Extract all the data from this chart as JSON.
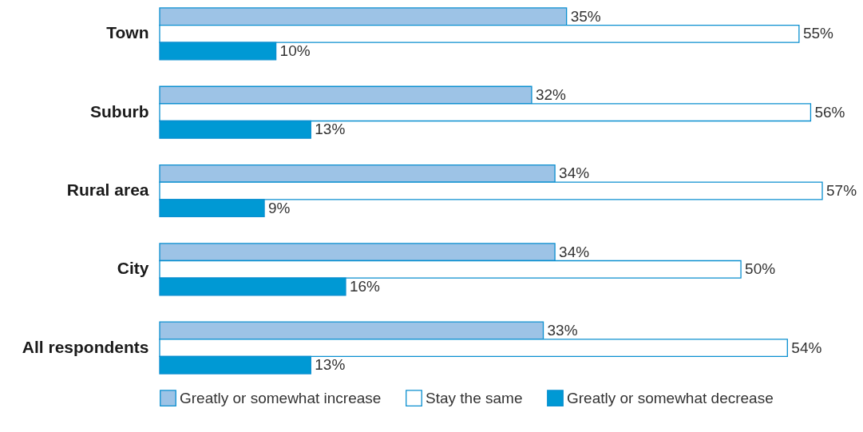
{
  "chart_data": {
    "type": "bar",
    "orientation": "horizontal",
    "categories": [
      "Town",
      "Suburb",
      "Rural area",
      "City",
      "All respondents"
    ],
    "series": [
      {
        "name": "Greatly or somewhat increase",
        "color": "#9dc3e6",
        "values": [
          35,
          32,
          34,
          34,
          33
        ],
        "value_labels": [
          "35%",
          "32%",
          "34%",
          "34%",
          "33%"
        ]
      },
      {
        "name": "Stay the same",
        "color": "#ffffff",
        "values": [
          55,
          56,
          57,
          50,
          54
        ],
        "value_labels": [
          "55%",
          "56%",
          "57%",
          "50%",
          "54%"
        ]
      },
      {
        "name": "Greatly or somewhat decrease",
        "color": "#0099d4",
        "values": [
          10,
          13,
          9,
          16,
          13
        ],
        "value_labels": [
          "10%",
          "13%",
          "9%",
          "16%",
          "13%"
        ]
      }
    ],
    "legend": "bottom"
  }
}
